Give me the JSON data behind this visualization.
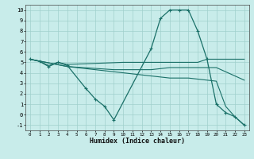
{
  "xlabel": "Humidex (Indice chaleur)",
  "xlim": [
    -0.5,
    23.5
  ],
  "ylim": [
    -1.5,
    10.5
  ],
  "xticks": [
    0,
    1,
    2,
    3,
    4,
    5,
    6,
    7,
    8,
    9,
    10,
    11,
    12,
    13,
    14,
    15,
    16,
    17,
    18,
    19,
    20,
    21,
    22,
    23
  ],
  "yticks": [
    -1,
    0,
    1,
    2,
    3,
    4,
    5,
    6,
    7,
    8,
    9,
    10
  ],
  "bg_color": "#c8ecea",
  "grid_color": "#a0d0cc",
  "line_color": "#1a7068",
  "line1_x": [
    0,
    1,
    2,
    3,
    4,
    6,
    7,
    8,
    9,
    13,
    14,
    15,
    16,
    17,
    18,
    19,
    20,
    21,
    22,
    23
  ],
  "line1_y": [
    5.3,
    5.1,
    4.6,
    5.0,
    4.7,
    2.5,
    1.5,
    0.8,
    -0.5,
    6.3,
    9.2,
    10.0,
    10.0,
    10.0,
    8.0,
    5.3,
    1.0,
    0.2,
    -0.2,
    -1.0
  ],
  "line2_x": [
    0,
    1,
    2,
    3,
    4,
    10,
    11,
    12,
    13,
    14,
    15,
    16,
    17,
    18,
    19,
    20,
    21,
    22,
    23
  ],
  "line2_y": [
    5.3,
    5.1,
    4.7,
    5.0,
    4.8,
    5.0,
    5.0,
    5.0,
    5.0,
    5.0,
    5.0,
    5.0,
    5.0,
    5.0,
    5.3,
    5.3,
    5.3,
    5.3,
    5.3
  ],
  "line3_x": [
    0,
    4,
    9,
    10,
    11,
    12,
    13,
    14,
    15,
    16,
    17,
    18,
    19,
    20,
    23
  ],
  "line3_y": [
    5.3,
    4.6,
    4.3,
    4.3,
    4.3,
    4.3,
    4.3,
    4.4,
    4.5,
    4.5,
    4.5,
    4.5,
    4.5,
    4.5,
    3.3
  ],
  "line4_x": [
    0,
    4,
    9,
    10,
    11,
    12,
    13,
    14,
    15,
    16,
    17,
    18,
    19,
    20,
    21,
    22,
    23
  ],
  "line4_y": [
    5.3,
    4.6,
    4.1,
    4.0,
    3.9,
    3.8,
    3.7,
    3.6,
    3.5,
    3.5,
    3.5,
    3.4,
    3.3,
    3.2,
    0.8,
    -0.2,
    -1.0
  ]
}
